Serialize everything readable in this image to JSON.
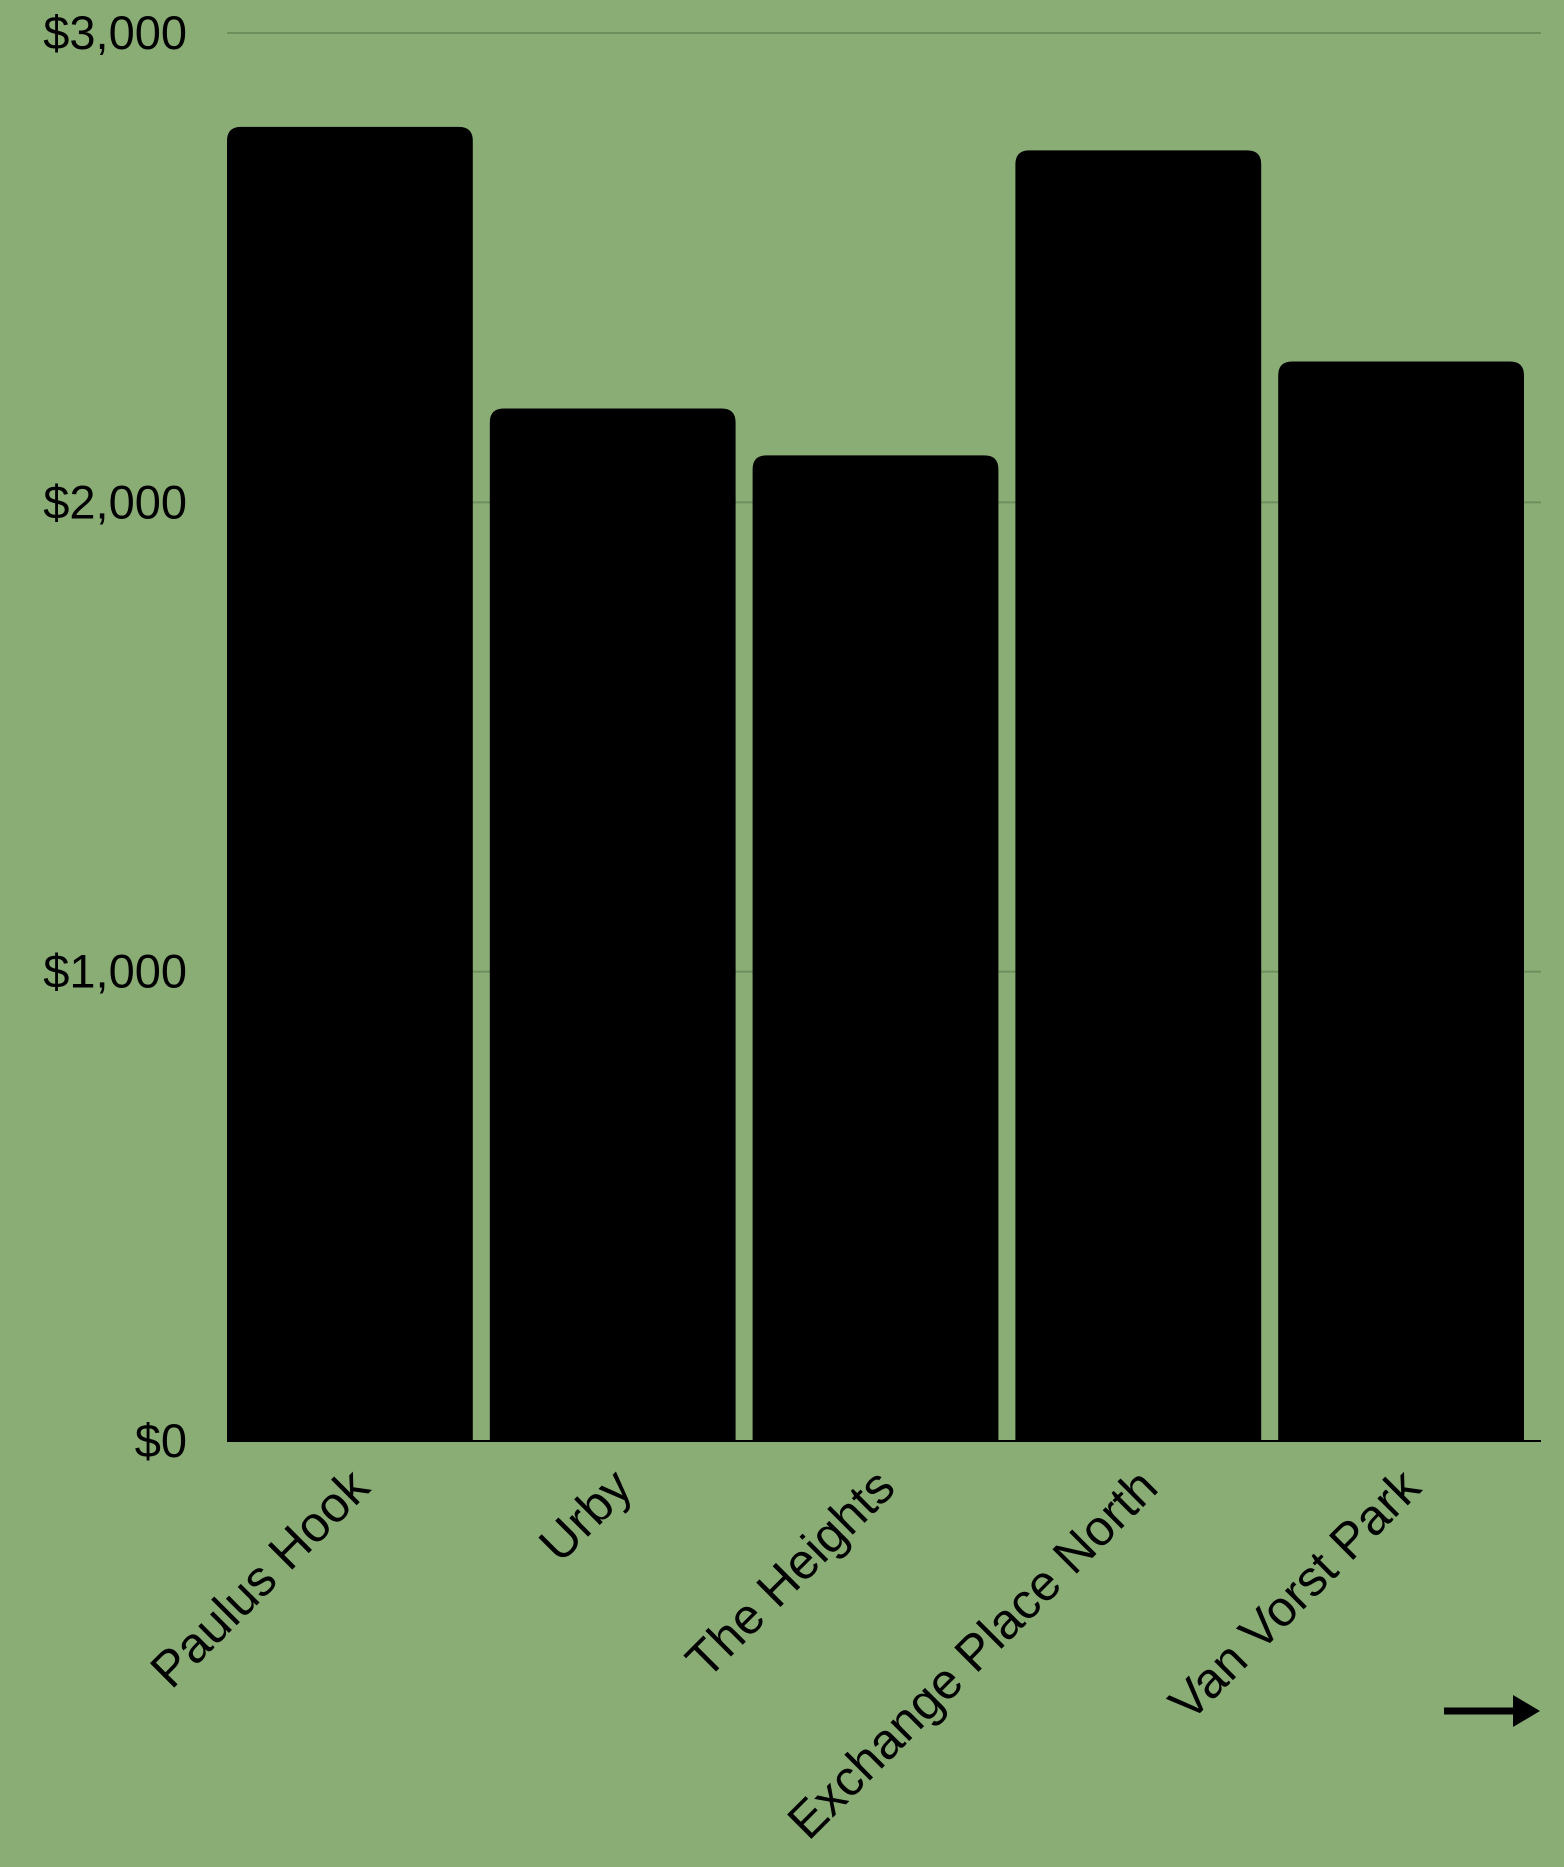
{
  "colors": {
    "background": "#8aad76",
    "bar": "#000000",
    "gridline": "#6e8f5c",
    "text": "#000000"
  },
  "chart_data": {
    "type": "bar",
    "title": "",
    "xlabel": "",
    "ylabel": "",
    "categories": [
      "Paulus Hook",
      "Urby",
      "The Heights",
      "Exchange Place North",
      "Van Vorst Park"
    ],
    "values": [
      2800,
      2200,
      2100,
      2750,
      2300
    ],
    "ylim": [
      0,
      3000
    ],
    "yticks": [
      0,
      1000,
      2000,
      3000
    ],
    "ytick_labels": [
      "$0",
      "$1,000",
      "$2,000",
      "$3,000"
    ],
    "grid": true,
    "legend": "none"
  },
  "nav": {
    "next_icon": "right-arrow-icon"
  }
}
